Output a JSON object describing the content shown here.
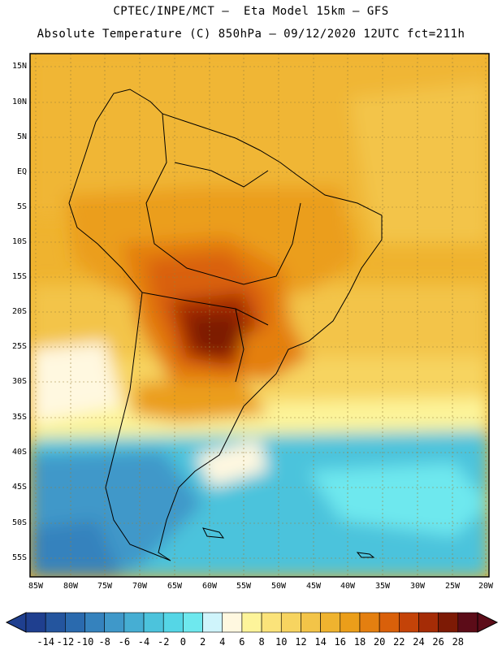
{
  "title_line1": "CPTEC/INPE/MCT –  Eta Model 15km – GFS",
  "title_line2": "Absolute Temperature (C) 850hPa – 09/12/2020 12UTC fct=211h",
  "lat_labels": [
    "15N",
    "10N",
    "5N",
    "EQ",
    "5S",
    "10S",
    "15S",
    "20S",
    "25S",
    "30S",
    "35S",
    "40S",
    "45S",
    "50S",
    "55S"
  ],
  "lon_labels": [
    "85W",
    "80W",
    "75W",
    "70W",
    "65W",
    "60W",
    "55W",
    "50W",
    "45W",
    "40W",
    "35W",
    "30W",
    "25W",
    "20W"
  ],
  "colorbar": {
    "labels": [
      "-14",
      "-12",
      "-10",
      "-8",
      "-6",
      "-4",
      "-2",
      "0",
      "2",
      "4",
      "6",
      "8",
      "10",
      "12",
      "14",
      "16",
      "18",
      "20",
      "22",
      "24",
      "26",
      "28"
    ],
    "colors": [
      "#1f3f8f",
      "#24559e",
      "#2a6aae",
      "#3582bd",
      "#3f98c9",
      "#46aed3",
      "#4cc3dc",
      "#55d6e6",
      "#6ee8ee",
      "#cff4fb",
      "#fff8e0",
      "#fdf49a",
      "#fbe37a",
      "#f7d460",
      "#f3c448",
      "#efb32f",
      "#eb9e1a",
      "#e47f10",
      "#d9600a",
      "#c44308",
      "#a52c06",
      "#7d1a05",
      "#5c0c18"
    ]
  }
}
